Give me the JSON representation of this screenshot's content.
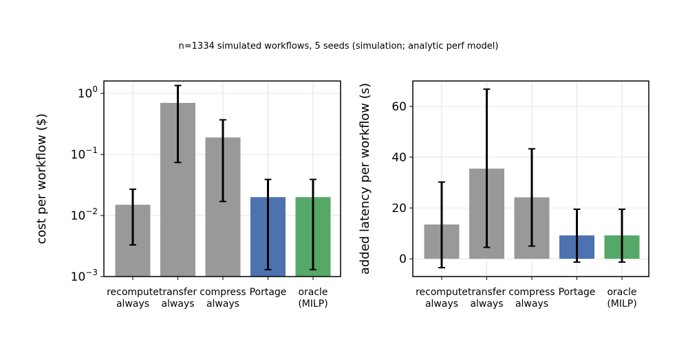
{
  "figure": {
    "suptitle": "n=1334 simulated workflows, 5 seeds (simulation; analytic perf model)"
  },
  "chart_data": [
    {
      "type": "bar",
      "ylabel": "cost per workflow ($)",
      "yscale": "log",
      "ylim": [
        0.001,
        1.6
      ],
      "yticks": [
        0.001,
        0.01,
        0.1,
        1
      ],
      "ytick_labels": [
        {
          "base": "10",
          "exp": "−3"
        },
        {
          "base": "10",
          "exp": "−2"
        },
        {
          "base": "10",
          "exp": "−1"
        },
        {
          "base": "10",
          "exp": "0"
        }
      ],
      "grid": true,
      "categories": [
        [
          "recompute",
          "always"
        ],
        [
          "transfer",
          "always"
        ],
        [
          "compress",
          "always"
        ],
        [
          "Portage"
        ],
        [
          "oracle",
          "(MILP)"
        ]
      ],
      "values": [
        0.015,
        0.7,
        0.19,
        0.02,
        0.02
      ],
      "errors_low": [
        0.0033,
        0.074,
        0.017,
        0.0013,
        0.0013
      ],
      "errors_high": [
        0.027,
        1.35,
        0.37,
        0.039,
        0.039
      ],
      "colors": [
        "#999999",
        "#999999",
        "#999999",
        "#4c72b0",
        "#55a868"
      ]
    },
    {
      "type": "bar",
      "ylabel": "added latency per workflow (s)",
      "yscale": "linear",
      "ylim": [
        -7,
        70
      ],
      "yticks": [
        0,
        20,
        40,
        60
      ],
      "ytick_labels": [
        "0",
        "20",
        "40",
        "60"
      ],
      "grid": true,
      "categories": [
        [
          "recompute",
          "always"
        ],
        [
          "transfer",
          "always"
        ],
        [
          "compress",
          "always"
        ],
        [
          "Portage"
        ],
        [
          "oracle",
          "(MILP)"
        ]
      ],
      "values": [
        13.5,
        35.5,
        24.2,
        9.2,
        9.2
      ],
      "errors_low": [
        -3.5,
        4.5,
        5.0,
        -1.3,
        -1.3
      ],
      "errors_high": [
        30.2,
        66.8,
        43.3,
        19.5,
        19.5
      ],
      "colors": [
        "#999999",
        "#999999",
        "#999999",
        "#4c72b0",
        "#55a868"
      ]
    }
  ]
}
